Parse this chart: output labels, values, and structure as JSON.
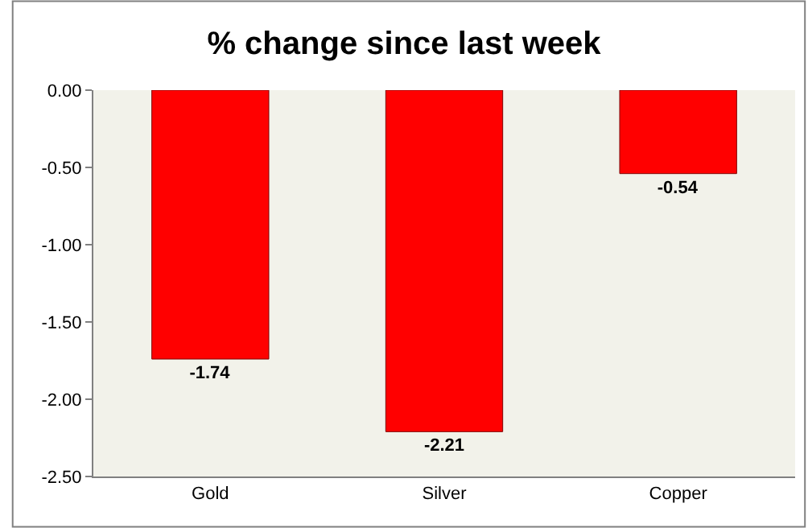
{
  "chart_data": {
    "type": "bar",
    "title": "% change since last week",
    "categories": [
      "Gold",
      "Silver",
      "Copper"
    ],
    "values": [
      -1.74,
      -2.21,
      -0.54
    ],
    "color": "#ff0000",
    "ylim": [
      -2.5,
      0
    ],
    "yticks": [
      {
        "value": 0,
        "label": "0.00"
      },
      {
        "value": -0.5,
        "label": "-0.50"
      },
      {
        "value": -1,
        "label": "-1.00"
      },
      {
        "value": -1.5,
        "label": "-1.50"
      },
      {
        "value": -2,
        "label": "-2.00"
      },
      {
        "value": -2.5,
        "label": "-2.50"
      }
    ],
    "data_labels": true,
    "grid": false,
    "legend": false
  }
}
